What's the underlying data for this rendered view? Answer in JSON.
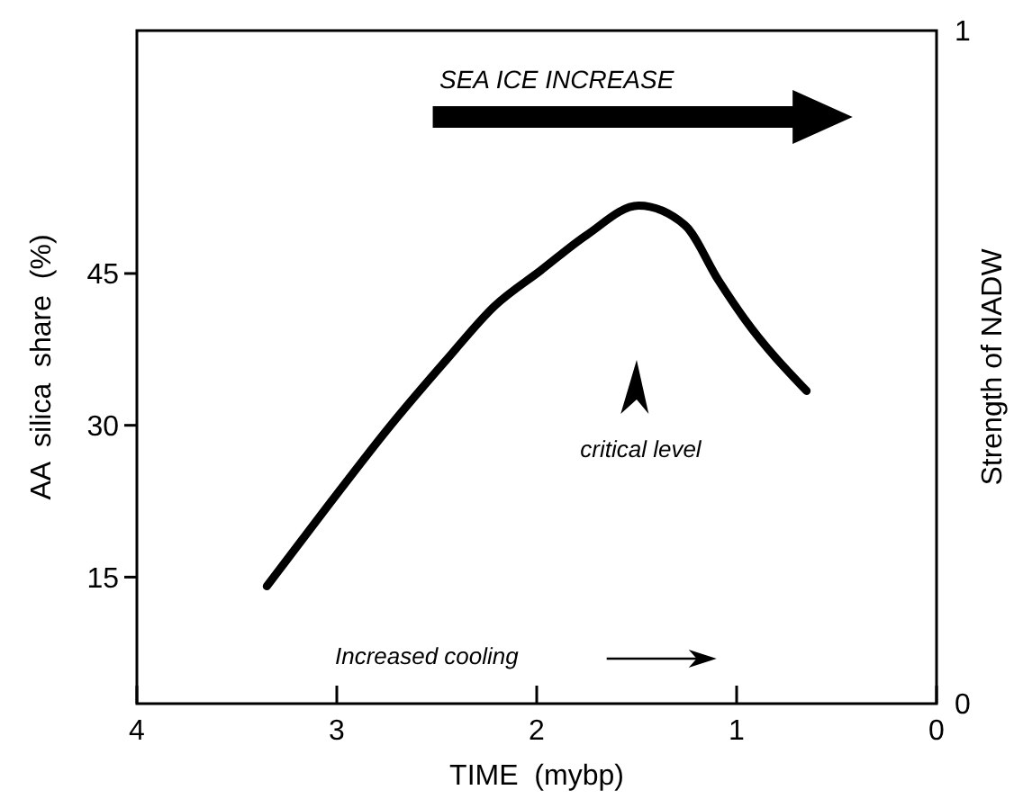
{
  "chart_data": {
    "type": "line",
    "xlabel": "TIME  (mybp)",
    "ylabel": "AA  silica  share  (%)",
    "y2label": "Strength of NADW",
    "x": [
      3.35,
      3.05,
      2.73,
      2.45,
      2.21,
      1.98,
      1.75,
      1.49,
      1.26,
      1.09,
      0.96,
      0.65
    ],
    "series": [
      {
        "color": "#000000",
        "values": [
          14.1,
          21.9,
          30,
          36.5,
          41.8,
          45.3,
          48.8,
          51.7,
          49.8,
          44.3,
          40.5,
          33.4
        ]
      }
    ],
    "xlim": [
      4,
      0
    ],
    "xticks": [
      4,
      3,
      2,
      1,
      0
    ],
    "ylim": [
      2.5,
      69
    ],
    "yticks": [
      15,
      30,
      45
    ],
    "y2lim": [
      0,
      1
    ],
    "y2ticks": [
      0,
      1
    ],
    "grid": false,
    "marker": "none",
    "line_style": "solid",
    "annotations": [
      "SEA ICE INCREASE",
      "critical level",
      "Increased cooling"
    ]
  }
}
